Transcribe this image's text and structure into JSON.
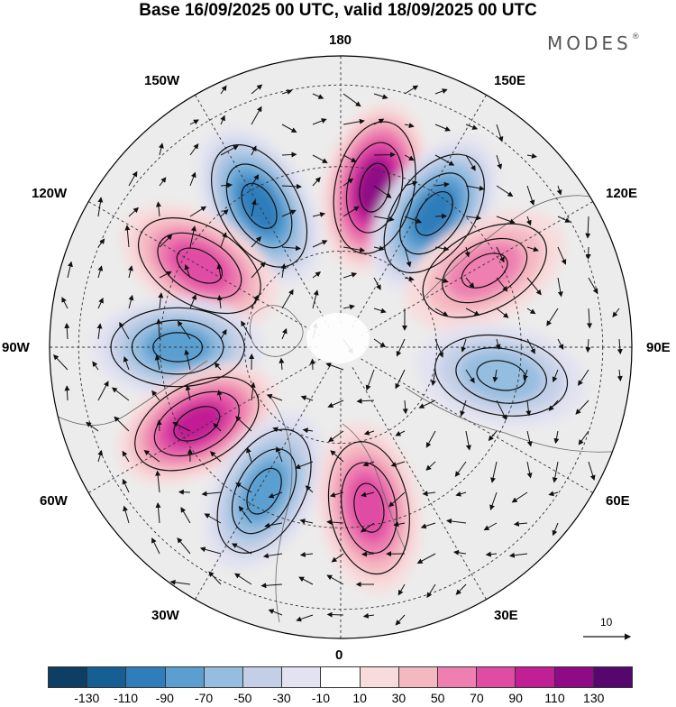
{
  "title": "Base 16/09/2025 00 UTC, valid 18/09/2025 00 UTC",
  "brand": "MODES",
  "brand_mark": "®",
  "longitude_labels": {
    "top": "180",
    "top_left": "150W",
    "top_right": "150E",
    "upper_left": "120W",
    "upper_right": "120E",
    "left": "90W",
    "right": "90E",
    "lower_left": "60W",
    "lower_right": "60E",
    "bottom_left": "30W",
    "bottom_right": "30E",
    "bottom": "0"
  },
  "reference_vector": {
    "label": "10"
  },
  "colorbar": {
    "colors": [
      "#0d3e63",
      "#155f93",
      "#2f7dbb",
      "#5a9fd0",
      "#95bde0",
      "#c3cfe6",
      "#e2e2f1",
      "#ffffff",
      "#f8dcdc",
      "#f4b8c1",
      "#ee7fb0",
      "#e04ca4",
      "#c11f95",
      "#8e0a86",
      "#56076e"
    ],
    "tick_labels": [
      "-130",
      "-110",
      "-90",
      "-70",
      "-50",
      "-30",
      "-10",
      "10",
      "30",
      "50",
      "70",
      "90",
      "110",
      "130"
    ]
  },
  "anomaly_centres": [
    {
      "lon": 168,
      "value": 120,
      "sign": "positive"
    },
    {
      "lon": -150,
      "value": -100,
      "sign": "negative"
    },
    {
      "lon": 145,
      "value": -90,
      "sign": "negative"
    },
    {
      "lon": -120,
      "value": 80,
      "sign": "positive"
    },
    {
      "lon": 118,
      "value": 60,
      "sign": "positive"
    },
    {
      "lon": -90,
      "value": -70,
      "sign": "negative"
    },
    {
      "lon": 80,
      "value": -50,
      "sign": "negative"
    },
    {
      "lon": -62,
      "value": 90,
      "sign": "positive"
    },
    {
      "lon": -28,
      "value": -70,
      "sign": "negative"
    },
    {
      "lon": 10,
      "value": 70,
      "sign": "positive"
    }
  ]
}
